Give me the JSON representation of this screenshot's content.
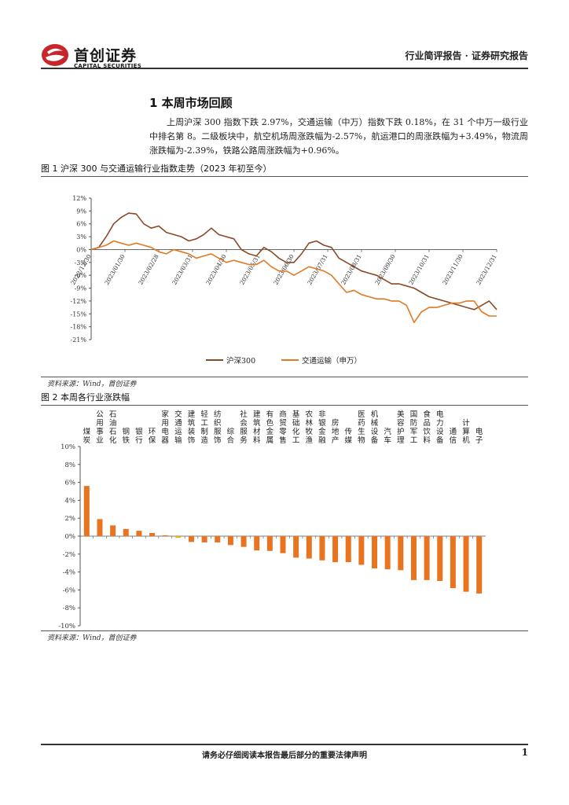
{
  "header": {
    "logo_cn": "首创证券",
    "logo_en": "CAPITAL SECURITIES",
    "right_text": "行业简评报告 · 证券研究报告",
    "brand_color": "#c8262b"
  },
  "section": {
    "title": "1 本周市场回顾",
    "paragraph": "上周沪深 300 指数下跌 2.97%，交通运输（中万）指数下跌 0.18%，在 31 个中万一级行业中排名第 8。二级板块中，航空机场周涨跌幅为-2.57%，航运港口的周涨跌幅为+3.49%，物流周涨跌幅为-2.39%，铁路公路周涨跌幅为+0.96%。"
  },
  "figure1": {
    "title": "图 1 沪深 300 与交通运输行业指数走势（2023 年初至今）",
    "source": "资料来源：Wind，首创证券"
  },
  "figure2": {
    "title": "图 2 本周各行业涨跌幅",
    "source": "资料来源：Wind，首创证券"
  },
  "footer": {
    "text": "请务必仔细阅读本报告最后部分的重要法律声明",
    "page": "1"
  },
  "chart_data": [
    {
      "type": "line",
      "y_ticks": [
        "12%",
        "9%",
        "6%",
        "3%",
        "0%",
        "-3%",
        "-6%",
        "-9%",
        "-12%",
        "-15%",
        "-18%",
        "-21%"
      ],
      "ylim": [
        -21,
        12
      ],
      "x_ticks": [
        "2022/12/30",
        "2023/01/30",
        "2023/02/28",
        "2023/03/31",
        "2023/04/30",
        "2023/05/31",
        "2023/06/30",
        "2023/07/31",
        "2023/08/31",
        "2023/09/30",
        "2023/10/31",
        "2023/11/30",
        "2023/12/31"
      ],
      "legend_position": "bottom",
      "series": [
        {
          "name": "沪深300",
          "color": "#8b4a26",
          "values": [
            0,
            0.5,
            3,
            6,
            7.5,
            8.5,
            8.3,
            6,
            5,
            5.5,
            4,
            3.5,
            3,
            2,
            2.5,
            3.5,
            5,
            3.5,
            3,
            2.5,
            0,
            -1,
            -1.5,
            0.5,
            -0.5,
            -2,
            -3,
            -3,
            -1,
            1.5,
            2,
            1,
            0.5,
            -2,
            -3,
            -4,
            -5,
            -5.5,
            -6,
            -7,
            -8,
            -8,
            -8.5,
            -9,
            -10,
            -11,
            -11.5,
            -12,
            -12.5,
            -13,
            -13.5,
            -14,
            -13,
            -12,
            -14
          ]
        },
        {
          "name": "交通运输（申万）",
          "color": "#e07a24",
          "values": [
            0,
            0.5,
            1,
            2,
            1.5,
            1,
            1.5,
            1,
            0.5,
            -0.5,
            -1,
            0,
            -0.5,
            -1,
            -2,
            -1.5,
            -1,
            -2,
            -3,
            -2.5,
            -3,
            -3.5,
            -3.5,
            -2.5,
            -4,
            -5,
            -5,
            -6,
            -5,
            -4,
            -4.5,
            -5,
            -6,
            -8,
            -10,
            -9.5,
            -10.5,
            -11,
            -11.5,
            -11.5,
            -12,
            -12,
            -13,
            -17,
            -14.5,
            -13.5,
            -13.5,
            -13,
            -12.5,
            -12.5,
            -12,
            -12,
            -14.5,
            -15.5,
            -15.5
          ]
        }
      ]
    },
    {
      "type": "bar",
      "categories": [
        "煤炭",
        "公用事业",
        "石油石化",
        "钢铁",
        "银行",
        "环保",
        "家用电器",
        "交通运输",
        "建筑装饰",
        "轻工制造",
        "纺织服饰",
        "综合",
        "社会服务",
        "建筑材料",
        "有色金属",
        "商贸零售",
        "基础化工",
        "农林牧渔",
        "非银金融",
        "房地产",
        "传媒",
        "医药生物",
        "机械设备",
        "汽车",
        "美容护理",
        "国防军工",
        "食品饮料",
        "电力设备",
        "通信",
        "计算机",
        "电子"
      ],
      "values": [
        5.6,
        1.9,
        1.2,
        0.8,
        0.6,
        0.35,
        0.1,
        -0.18,
        -0.65,
        -0.7,
        -0.7,
        -1.0,
        -1.2,
        -1.6,
        -1.65,
        -1.9,
        -2.4,
        -2.5,
        -2.7,
        -2.9,
        -2.9,
        -3.2,
        -3.6,
        -3.7,
        -3.8,
        -4.9,
        -4.9,
        -5.0,
        -5.8,
        -6.2,
        -6.4
      ],
      "highlight_category": "交通运输",
      "bar_color": "#e8741f",
      "highlight_color": "#f0b000",
      "y_ticks": [
        "10%",
        "8%",
        "6%",
        "4%",
        "2%",
        "0%",
        "-2%",
        "-4%",
        "-6%",
        "-8%",
        "-10%"
      ],
      "ylim": [
        -10,
        10
      ]
    }
  ]
}
